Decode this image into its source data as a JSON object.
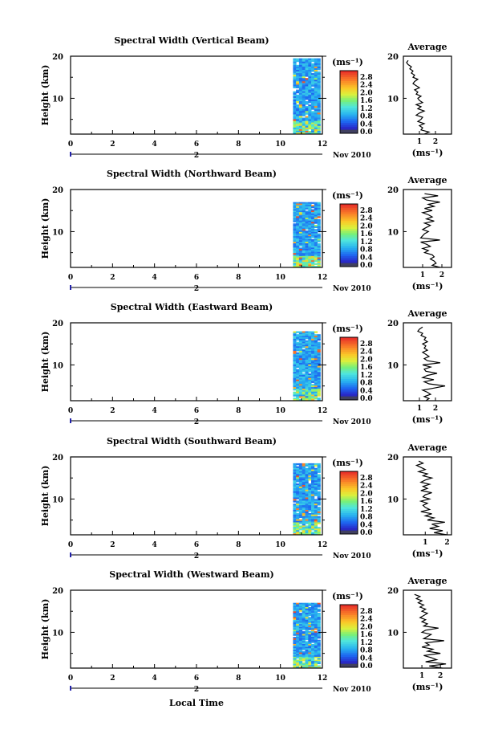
{
  "figure": {
    "ylabel": "Height (km)",
    "xlabel": "Local Time",
    "date_label": "Nov 2010",
    "day_label": "2",
    "cbar_unit": "(ms⁻¹)",
    "avg_title": "Average",
    "avg_xlabel": "(ms⁻¹)"
  },
  "chart_data": [
    {
      "type": "heatmap",
      "title": "Spectral Width (Vertical Beam)",
      "xlabel": "Local Time",
      "ylabel": "Height (km)",
      "xlim": [
        0,
        12
      ],
      "ylim": [
        1.5,
        20
      ],
      "xticks": [
        "0",
        "2",
        "4",
        "6",
        "8",
        "10",
        "12"
      ],
      "yticks": [
        "10",
        "20"
      ],
      "data_extent": {
        "x": [
          10.6,
          11.9
        ],
        "y": [
          1.5,
          19.5
        ]
      },
      "colorbar": {
        "min": 0.0,
        "max": 3.0,
        "ticks": [
          "2.8",
          "2.4",
          "2.0",
          "1.6",
          "1.2",
          "0.8",
          "0.4",
          "0.0"
        ]
      },
      "average_profile": {
        "xticks": [
          "1",
          "2"
        ],
        "xlim": [
          0,
          3
        ],
        "height_km": [
          1.5,
          2,
          2.5,
          3,
          3.5,
          4,
          4.5,
          5,
          5.5,
          6,
          6.5,
          7,
          7.5,
          8,
          8.5,
          9,
          9.5,
          10,
          10.5,
          11,
          11.5,
          12,
          12.5,
          13,
          13.5,
          14,
          14.5,
          15,
          15.5,
          16,
          16.5,
          17,
          17.5,
          18,
          18.5,
          19
        ],
        "value": [
          1.3,
          1.6,
          1.1,
          1.2,
          1.0,
          1.3,
          0.9,
          1.1,
          1.2,
          0.8,
          1.0,
          1.3,
          0.9,
          1.1,
          0.8,
          1.2,
          1.0,
          0.9,
          1.1,
          0.8,
          0.9,
          0.7,
          1.0,
          0.8,
          0.6,
          0.7,
          0.9,
          0.6,
          0.7,
          0.5,
          0.6,
          0.4,
          0.5,
          0.3,
          0.2,
          0.3
        ]
      }
    },
    {
      "type": "heatmap",
      "title": "Spectral Width (Northward Beam)",
      "xlabel": "Local Time",
      "ylabel": "Height (km)",
      "xlim": [
        0,
        12
      ],
      "ylim": [
        1.5,
        20
      ],
      "xticks": [
        "0",
        "2",
        "4",
        "6",
        "8",
        "10",
        "12"
      ],
      "yticks": [
        "10",
        "20"
      ],
      "data_extent": {
        "x": [
          10.6,
          11.9
        ],
        "y": [
          1.5,
          17.0
        ]
      },
      "colorbar": {
        "min": 0.0,
        "max": 3.0,
        "ticks": [
          "2.8",
          "2.4",
          "2.0",
          "1.6",
          "1.2",
          "0.8",
          "0.4",
          "0.0"
        ]
      },
      "average_profile": {
        "xticks": [
          "1",
          "2"
        ],
        "xlim": [
          0,
          2.5
        ],
        "height_km": [
          1.5,
          2,
          2.5,
          3,
          3.5,
          4,
          4.5,
          5,
          5.5,
          6,
          6.5,
          7,
          7.5,
          8,
          8.5,
          9,
          9.5,
          10,
          10.5,
          11,
          11.5,
          12,
          12.5,
          13,
          13.5,
          14,
          14.5,
          15,
          15.5,
          16,
          16.5,
          17,
          17.5,
          18,
          18.5,
          19
        ],
        "value": [
          1.9,
          1.5,
          1.7,
          1.6,
          1.4,
          1.6,
          1.5,
          1.1,
          1.3,
          1.0,
          1.4,
          1.2,
          0.9,
          1.9,
          0.9,
          1.0,
          1.1,
          1.3,
          1.0,
          1.2,
          1.4,
          1.1,
          1.6,
          1.2,
          1.5,
          1.3,
          1.0,
          1.5,
          1.1,
          1.6,
          1.3,
          1.9,
          1.2,
          1.0,
          1.8,
          1.1
        ]
      }
    },
    {
      "type": "heatmap",
      "title": "Spectral Width (Eastward Beam)",
      "xlabel": "Local Time",
      "ylabel": "Height (km)",
      "xlim": [
        0,
        12
      ],
      "ylim": [
        1.5,
        20
      ],
      "xticks": [
        "0",
        "2",
        "4",
        "6",
        "8",
        "10",
        "12"
      ],
      "yticks": [
        "10",
        "20"
      ],
      "data_extent": {
        "x": [
          10.6,
          11.9
        ],
        "y": [
          1.5,
          18.0
        ]
      },
      "colorbar": {
        "min": 0.0,
        "max": 3.0,
        "ticks": [
          "2.8",
          "2.4",
          "2.0",
          "1.6",
          "1.2",
          "0.8",
          "0.4",
          "0.0"
        ]
      },
      "average_profile": {
        "xticks": [
          "1",
          "2"
        ],
        "xlim": [
          0,
          3
        ],
        "height_km": [
          1.5,
          2,
          2.5,
          3,
          3.5,
          4,
          4.5,
          5,
          5.5,
          6,
          6.5,
          7,
          7.5,
          8,
          8.5,
          9,
          9.5,
          10,
          10.5,
          11,
          11.5,
          12,
          12.5,
          13,
          13.5,
          14,
          14.5,
          15,
          15.5,
          16,
          16.5,
          17,
          17.5,
          18,
          18.5,
          19
        ],
        "value": [
          1.4,
          1.6,
          1.3,
          1.7,
          1.5,
          1.2,
          1.9,
          2.6,
          1.6,
          1.3,
          1.9,
          1.2,
          1.5,
          2.1,
          1.4,
          1.3,
          1.7,
          1.2,
          2.3,
          1.5,
          1.3,
          1.6,
          1.4,
          1.2,
          1.5,
          1.3,
          1.4,
          1.2,
          1.5,
          1.3,
          1.4,
          1.1,
          1.2,
          0.9,
          1.0,
          1.2
        ]
      }
    },
    {
      "type": "heatmap",
      "title": "Spectral Width (Southward Beam)",
      "xlabel": "Local Time",
      "ylabel": "Height (km)",
      "xlim": [
        0,
        12
      ],
      "ylim": [
        1.5,
        20
      ],
      "xticks": [
        "0",
        "2",
        "4",
        "6",
        "8",
        "10",
        "12"
      ],
      "yticks": [
        "10",
        "20"
      ],
      "data_extent": {
        "x": [
          10.6,
          11.9
        ],
        "y": [
          1.5,
          18.5
        ]
      },
      "colorbar": {
        "min": 0.0,
        "max": 3.0,
        "ticks": [
          "2.8",
          "2.4",
          "2.0",
          "1.6",
          "1.2",
          "0.8",
          "0.4",
          "0.0"
        ]
      },
      "average_profile": {
        "xticks": [
          "1",
          "2"
        ],
        "xlim": [
          0,
          2.2
        ],
        "height_km": [
          1.5,
          2,
          2.5,
          3,
          3.5,
          4,
          4.5,
          5,
          5.5,
          6,
          6.5,
          7,
          7.5,
          8,
          8.5,
          9,
          9.5,
          10,
          10.5,
          11,
          11.5,
          12,
          12.5,
          13,
          13.5,
          14,
          14.5,
          15,
          15.5,
          16,
          16.5,
          17,
          17.5,
          18,
          18.5,
          19
        ],
        "value": [
          2.0,
          1.4,
          1.8,
          1.2,
          1.6,
          1.3,
          1.9,
          1.1,
          1.4,
          1.0,
          1.3,
          0.8,
          1.2,
          1.0,
          0.9,
          1.1,
          0.8,
          1.2,
          0.9,
          1.0,
          1.3,
          0.8,
          1.1,
          0.9,
          1.2,
          0.8,
          1.0,
          1.3,
          0.9,
          1.1,
          0.7,
          1.0,
          0.8,
          0.6,
          0.9,
          0.7
        ]
      }
    },
    {
      "type": "heatmap",
      "title": "Spectral Width (Westward Beam)",
      "xlabel": "Local Time",
      "ylabel": "Height (km)",
      "xlim": [
        0,
        12
      ],
      "ylim": [
        1.5,
        20
      ],
      "xticks": [
        "0",
        "2",
        "4",
        "6",
        "8",
        "10",
        "12"
      ],
      "yticks": [
        "10",
        "20"
      ],
      "data_extent": {
        "x": [
          10.6,
          11.9
        ],
        "y": [
          1.5,
          17.0
        ]
      },
      "colorbar": {
        "min": 0.0,
        "max": 3.0,
        "ticks": [
          "2.8",
          "2.4",
          "2.0",
          "1.6",
          "1.2",
          "0.8",
          "0.4",
          "0.0"
        ]
      },
      "average_profile": {
        "xticks": [
          "1",
          "2"
        ],
        "xlim": [
          0,
          2.6
        ],
        "height_km": [
          1.5,
          2,
          2.5,
          3,
          3.5,
          4,
          4.5,
          5,
          5.5,
          6,
          6.5,
          7,
          7.5,
          8,
          8.5,
          9,
          9.5,
          10,
          10.5,
          11,
          11.5,
          12,
          12.5,
          13,
          13.5,
          14,
          14.5,
          15,
          15.5,
          16,
          16.5,
          17,
          17.5,
          18,
          18.5,
          19
        ],
        "value": [
          2.1,
          1.4,
          2.3,
          1.2,
          1.8,
          1.5,
          1.1,
          2.0,
          1.3,
          1.6,
          1.0,
          1.4,
          1.2,
          2.2,
          1.1,
          1.3,
          1.5,
          1.0,
          1.2,
          1.9,
          1.1,
          1.3,
          1.0,
          1.2,
          0.9,
          1.1,
          1.3,
          1.0,
          1.2,
          0.9,
          1.1,
          0.8,
          1.0,
          0.7,
          0.9,
          0.6
        ]
      }
    }
  ]
}
